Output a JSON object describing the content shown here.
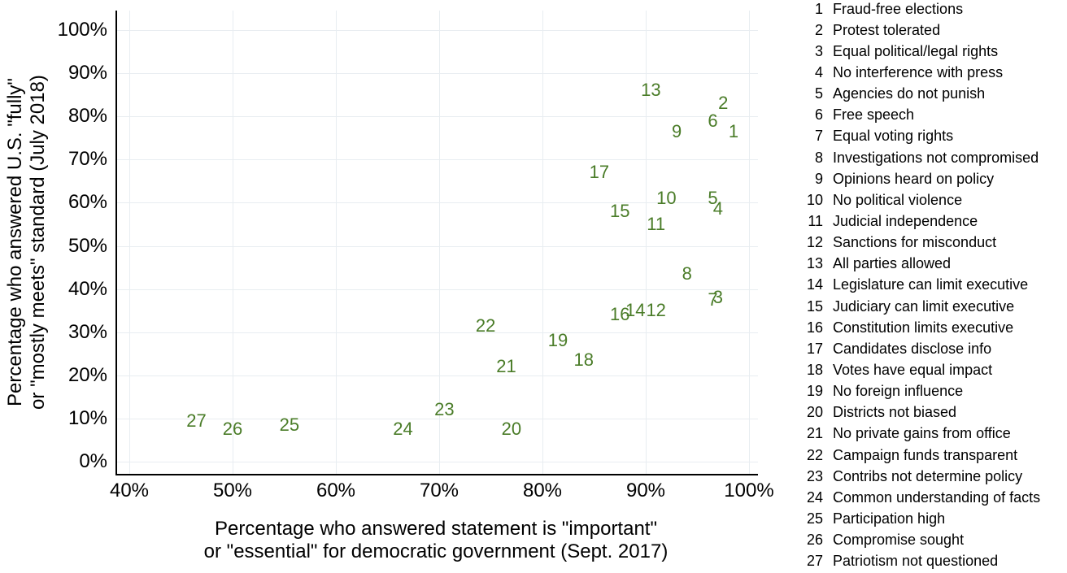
{
  "chart_data": {
    "type": "scatter",
    "marker_style": "numeric-text-label",
    "grid": true,
    "legend_position": "right",
    "xlabel_line1": "Percentage who answered statement is \"important\"",
    "xlabel_line2": "or \"essential\" for democratic government (Sept. 2017)",
    "ylabel_line1": "Percentage who answered U.S. \"fully\"",
    "ylabel_line2": "or \"mostly meets\" standard (July 2018)",
    "xlim": [
      40,
      100
    ],
    "ylim": [
      0,
      100
    ],
    "x_tick_step": 10,
    "y_tick_step": 10,
    "x_tick_labels": [
      "40%",
      "50%",
      "60%",
      "70%",
      "80%",
      "90%",
      "100%"
    ],
    "y_tick_labels": [
      "0%",
      "10%",
      "20%",
      "30%",
      "40%",
      "50%",
      "60%",
      "70%",
      "80%",
      "90%",
      "100%"
    ],
    "colors": {
      "point_label": "#4a7c28",
      "grid": "#e8edf1",
      "axis": "#000000",
      "background": "#ffffff"
    },
    "points": [
      {
        "num": "1",
        "label": "Fraud-free elections",
        "x": 98.5,
        "y": 76.5
      },
      {
        "num": "2",
        "label": "Protest tolerated",
        "x": 97.5,
        "y": 83
      },
      {
        "num": "3",
        "label": "Equal political/legal rights",
        "x": 97,
        "y": 38
      },
      {
        "num": "4",
        "label": "No interference with press",
        "x": 97,
        "y": 58.5
      },
      {
        "num": "5",
        "label": "Agencies do not punish",
        "x": 96.5,
        "y": 61
      },
      {
        "num": "6",
        "label": "Free speech",
        "x": 96.5,
        "y": 79
      },
      {
        "num": "7",
        "label": "Equal voting rights",
        "x": 96.5,
        "y": 37.5
      },
      {
        "num": "8",
        "label": "Investigations not compromised",
        "x": 94,
        "y": 43.5
      },
      {
        "num": "9",
        "label": "Opinions heard on policy",
        "x": 93,
        "y": 76.5
      },
      {
        "num": "10",
        "label": "No political violence",
        "x": 92,
        "y": 61
      },
      {
        "num": "11",
        "label": "Judicial independence",
        "x": 91,
        "y": 55
      },
      {
        "num": "12",
        "label": "Sanctions for misconduct",
        "x": 91,
        "y": 35
      },
      {
        "num": "13",
        "label": "All parties allowed",
        "x": 90.5,
        "y": 86
      },
      {
        "num": "14",
        "label": "Legislature can limit executive",
        "x": 89,
        "y": 35
      },
      {
        "num": "15",
        "label": "Judiciary can limit executive",
        "x": 87.5,
        "y": 58
      },
      {
        "num": "16",
        "label": "Constitution limits executive",
        "x": 87.5,
        "y": 34
      },
      {
        "num": "17",
        "label": "Candidates disclose info",
        "x": 85.5,
        "y": 67
      },
      {
        "num": "18",
        "label": "Votes have equal impact",
        "x": 84,
        "y": 23.5
      },
      {
        "num": "19",
        "label": "No foreign influence",
        "x": 81.5,
        "y": 28
      },
      {
        "num": "20",
        "label": "Districts not biased",
        "x": 77,
        "y": 7.5
      },
      {
        "num": "21",
        "label": "No private gains from office",
        "x": 76.5,
        "y": 22
      },
      {
        "num": "22",
        "label": "Campaign funds transparent",
        "x": 74.5,
        "y": 31.5
      },
      {
        "num": "23",
        "label": "Contribs not determine policy",
        "x": 70.5,
        "y": 12
      },
      {
        "num": "24",
        "label": "Common understanding of facts",
        "x": 66.5,
        "y": 7.5
      },
      {
        "num": "25",
        "label": "Participation high",
        "x": 55.5,
        "y": 8.5
      },
      {
        "num": "26",
        "label": "Compromise sought",
        "x": 50,
        "y": 7.5
      },
      {
        "num": "27",
        "label": "Patriotism not questioned",
        "x": 46.5,
        "y": 9.5
      }
    ]
  }
}
